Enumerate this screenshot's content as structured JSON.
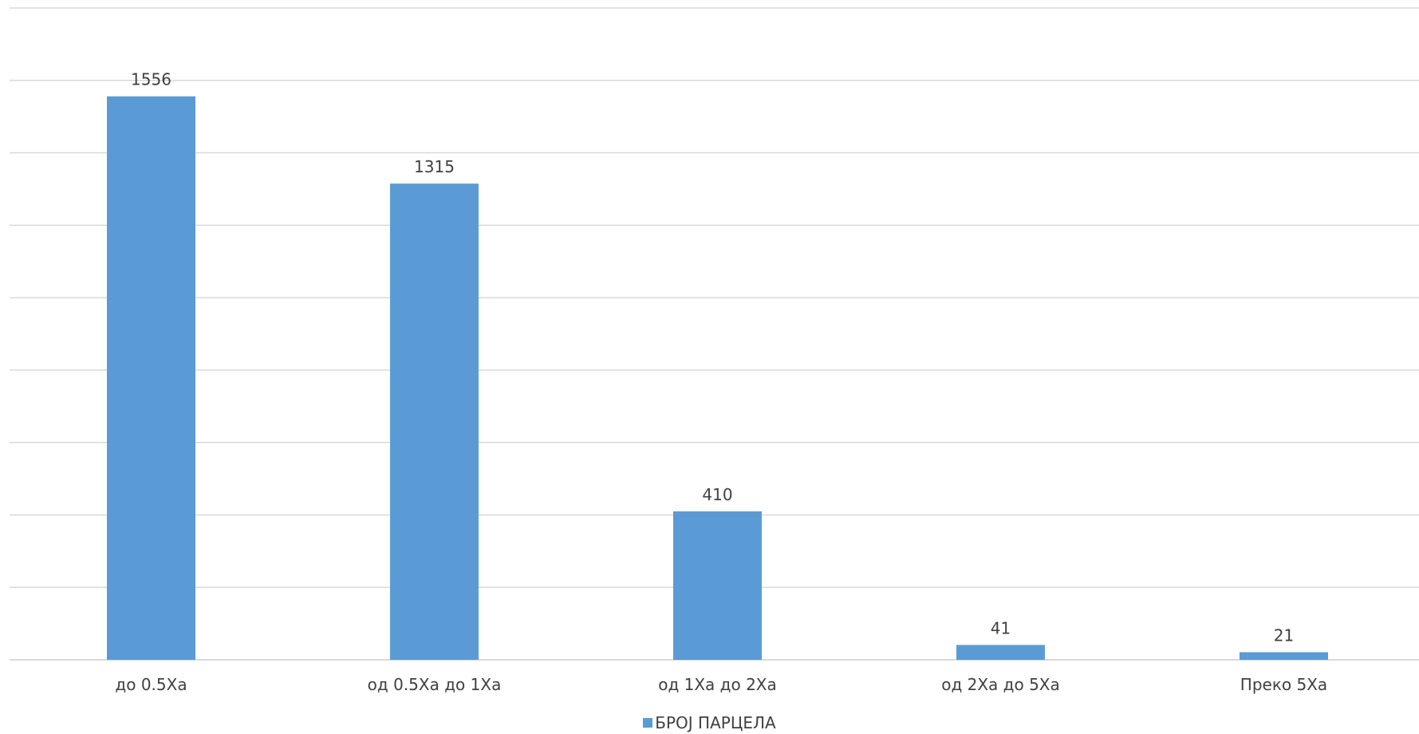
{
  "chart_data": {
    "type": "bar",
    "categories": [
      "до 0.5Ха",
      "од 0.5Ха до 1Ха",
      "од 1Ха до 2Ха",
      "од 2Ха до 5Ха",
      "Преко 5Ха"
    ],
    "series": [
      {
        "name": "БРОЈ ПАРЦЕЛА",
        "values": [
          1556,
          1315,
          410,
          41,
          21
        ],
        "color": "#5b9bd5"
      }
    ],
    "ylim": [
      0,
      1800
    ],
    "ytick_step": 200,
    "grid": true,
    "legend": "bottom",
    "data_labels": [
      "1556",
      "1315",
      "410",
      "41",
      "21"
    ]
  }
}
